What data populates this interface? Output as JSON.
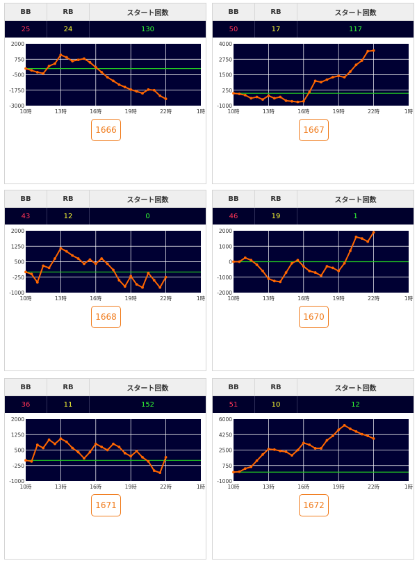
{
  "columns": {
    "bb": "BB",
    "rb": "RB",
    "start": "スタート回数"
  },
  "colors": {
    "bb": "#ff3355",
    "rb": "#ffff33",
    "start": "#33ff33",
    "line": "#ff6600",
    "baseline": "#22cc22",
    "plot_bg": "#000033",
    "grid": "#ffffff",
    "button": "#f07a1a"
  },
  "machines": [
    {
      "id": "1666",
      "bb": "25",
      "rb": "24",
      "start": "130"
    },
    {
      "id": "1667",
      "bb": "50",
      "rb": "17",
      "start": "117"
    },
    {
      "id": "1668",
      "bb": "43",
      "rb": "12",
      "start": "0"
    },
    {
      "id": "1670",
      "bb": "46",
      "rb": "19",
      "start": "1"
    },
    {
      "id": "1671",
      "bb": "36",
      "rb": "11",
      "start": "152"
    },
    {
      "id": "1672",
      "bb": "51",
      "rb": "10",
      "start": "12"
    }
  ],
  "chart_data": [
    {
      "type": "line",
      "machine": "1666",
      "x_ticks": [
        "10時",
        "13時",
        "16時",
        "19時",
        "22時",
        "1時"
      ],
      "y_ticks": [
        "2000",
        "750",
        "-500",
        "-1750",
        "-3000"
      ],
      "ylim": [
        -3000,
        2000
      ],
      "xlim": [
        10,
        25
      ],
      "baseline": 0,
      "x": [
        10,
        10.5,
        11,
        11.5,
        12,
        12.5,
        13,
        13.5,
        14,
        14.5,
        15,
        15.5,
        16,
        16.5,
        17,
        17.5,
        18,
        18.5,
        19,
        19.5,
        20,
        20.5,
        21,
        21.5,
        22
      ],
      "y": [
        0,
        -150,
        -300,
        -400,
        200,
        400,
        1100,
        900,
        600,
        700,
        800,
        500,
        100,
        -300,
        -700,
        -1000,
        -1300,
        -1500,
        -1700,
        -1850,
        -2000,
        -1700,
        -1750,
        -2200,
        -2450
      ]
    },
    {
      "type": "line",
      "machine": "1667",
      "x_ticks": [
        "10時",
        "13時",
        "16時",
        "19時",
        "22時",
        "1時"
      ],
      "y_ticks": [
        "4000",
        "2750",
        "1500",
        "250",
        "-1000"
      ],
      "ylim": [
        -1000,
        4000
      ],
      "xlim": [
        10,
        25
      ],
      "baseline": 0,
      "x": [
        10,
        10.5,
        11,
        11.5,
        12,
        12.5,
        13,
        13.5,
        14,
        14.5,
        15,
        15.5,
        16,
        16.5,
        17,
        17.5,
        18,
        18.5,
        19,
        19.5,
        20,
        20.5,
        21,
        21.5,
        22
      ],
      "y": [
        0,
        -50,
        -150,
        -400,
        -300,
        -500,
        -200,
        -400,
        -300,
        -600,
        -650,
        -700,
        -650,
        100,
        1000,
        900,
        1100,
        1300,
        1400,
        1300,
        1750,
        2300,
        2650,
        3400,
        3450
      ]
    },
    {
      "type": "line",
      "machine": "1668",
      "x_ticks": [
        "10時",
        "13時",
        "16時",
        "19時",
        "22時",
        "1時"
      ],
      "y_ticks": [
        "2000",
        "1250",
        "500",
        "-250",
        "-1000"
      ],
      "ylim": [
        -1000,
        2000
      ],
      "xlim": [
        10,
        25
      ],
      "baseline": 0,
      "x": [
        10,
        10.5,
        11,
        11.5,
        12,
        12.5,
        13,
        13.5,
        14,
        14.5,
        15,
        15.5,
        16,
        16.5,
        17,
        17.5,
        18,
        18.5,
        19,
        19.5,
        20,
        20.5,
        21,
        21.5,
        22
      ],
      "y": [
        0,
        -100,
        -500,
        300,
        200,
        650,
        1150,
        1000,
        800,
        650,
        400,
        600,
        400,
        650,
        400,
        100,
        -400,
        -700,
        -200,
        -600,
        -750,
        -50,
        -400,
        -750,
        -250
      ]
    },
    {
      "type": "line",
      "machine": "1670",
      "x_ticks": [
        "10時",
        "13時",
        "16時",
        "19時",
        "22時",
        "1時"
      ],
      "y_ticks": [
        "2000",
        "1000",
        "0",
        "-1000",
        "-2000"
      ],
      "ylim": [
        -2000,
        2000
      ],
      "xlim": [
        10,
        25
      ],
      "baseline": 0,
      "x": [
        10,
        10.5,
        11,
        11.5,
        12,
        12.5,
        13,
        13.5,
        14,
        14.5,
        15,
        15.5,
        16,
        16.5,
        17,
        17.5,
        18,
        18.5,
        19,
        19.5,
        20,
        20.5,
        21,
        21.5,
        22
      ],
      "y": [
        0,
        0,
        250,
        100,
        -200,
        -600,
        -1100,
        -1250,
        -1300,
        -700,
        -100,
        100,
        -300,
        -600,
        -700,
        -900,
        -300,
        -400,
        -600,
        -100,
        700,
        1600,
        1500,
        1300,
        1900
      ]
    },
    {
      "type": "line",
      "machine": "1671",
      "x_ticks": [
        "10時",
        "13時",
        "16時",
        "19時",
        "22時",
        "1時"
      ],
      "y_ticks": [
        "2000",
        "1250",
        "500",
        "-250",
        "-1000"
      ],
      "ylim": [
        -1000,
        2000
      ],
      "xlim": [
        10,
        25
      ],
      "baseline": 0,
      "x": [
        10,
        10.5,
        11,
        11.5,
        12,
        12.5,
        13,
        13.5,
        14,
        14.5,
        15,
        15.5,
        16,
        16.5,
        17,
        17.5,
        18,
        18.5,
        19,
        19.5,
        20,
        20.5,
        21,
        21.5,
        22
      ],
      "y": [
        0,
        -50,
        750,
        600,
        1000,
        800,
        1050,
        900,
        600,
        400,
        100,
        400,
        800,
        650,
        500,
        800,
        650,
        350,
        200,
        450,
        150,
        -50,
        -500,
        -600,
        150
      ]
    },
    {
      "type": "line",
      "machine": "1672",
      "x_ticks": [
        "10時",
        "13時",
        "16時",
        "19時",
        "22時",
        "1時"
      ],
      "y_ticks": [
        "6000",
        "4250",
        "2500",
        "750",
        "-1000"
      ],
      "ylim": [
        -1000,
        6000
      ],
      "xlim": [
        10,
        25
      ],
      "baseline": 0,
      "x": [
        10,
        10.5,
        11,
        11.5,
        12,
        12.5,
        13,
        13.5,
        14,
        14.5,
        15,
        15.5,
        16,
        16.5,
        17,
        17.5,
        18,
        18.5,
        19,
        19.5,
        20,
        20.5,
        21,
        21.5,
        22
      ],
      "y": [
        0,
        50,
        400,
        600,
        1300,
        2000,
        2600,
        2550,
        2400,
        2300,
        1900,
        2500,
        3300,
        3100,
        2700,
        2700,
        3600,
        4100,
        4800,
        5300,
        4900,
        4600,
        4300,
        4100,
        3800
      ]
    }
  ]
}
